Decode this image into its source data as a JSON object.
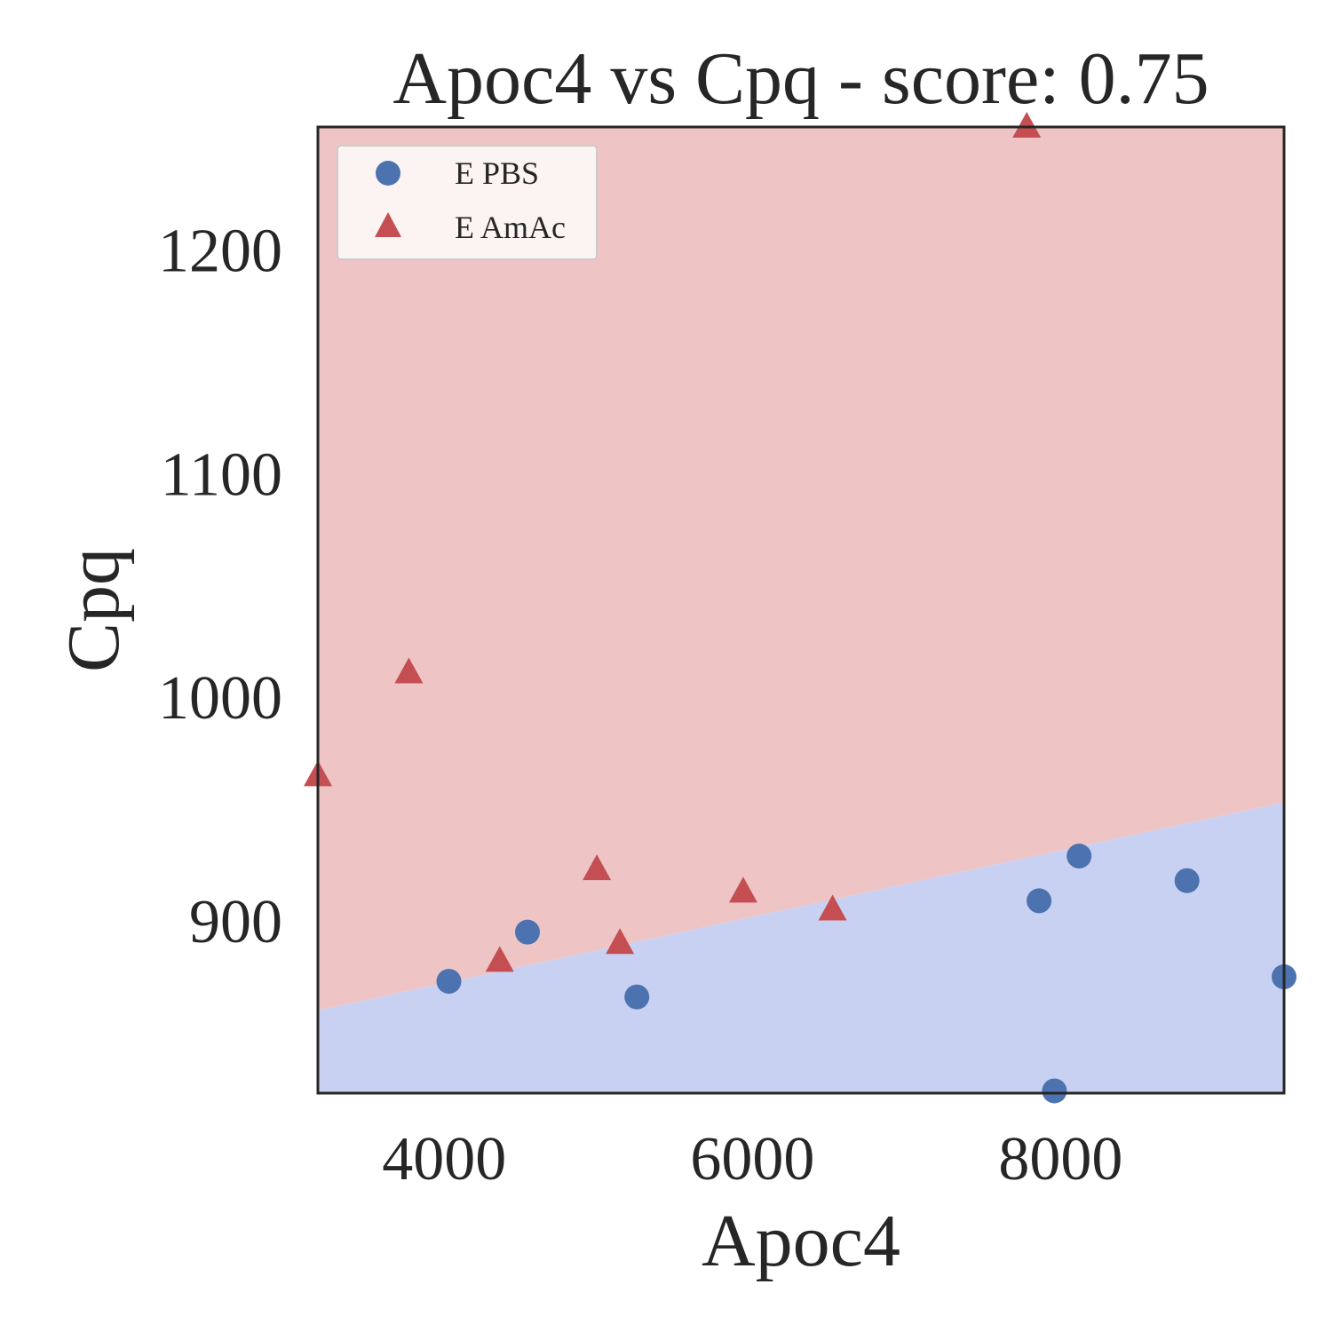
{
  "chart_data": {
    "type": "scatter",
    "title": "Apoc4 vs Cpq - score: 0.75",
    "xlabel": "Apoc4",
    "ylabel": "Cpq",
    "xlim": [
      3180,
      9450
    ],
    "ylim": [
      823,
      1255
    ],
    "xticks": [
      "4000",
      "6000",
      "8000"
    ],
    "xtick_values": [
      4000,
      6000,
      8000
    ],
    "yticks": [
      "900",
      "1000",
      "1100",
      "1200"
    ],
    "ytick_values": [
      900,
      1000,
      1100,
      1200
    ],
    "grid": false,
    "legend_position": "top-left",
    "decision_boundary": {
      "x": [
        3180,
        9450
      ],
      "y": [
        860,
        953
      ],
      "color_above": "#eec5c4",
      "color_below": "#c9d1f3"
    },
    "series": [
      {
        "name": "E PBS",
        "marker": "circle",
        "color": "#4c72b0",
        "points": [
          [
            4030,
            873
          ],
          [
            4540,
            895
          ],
          [
            5250,
            866
          ],
          [
            7860,
            909
          ],
          [
            7960,
            824
          ],
          [
            8120,
            929
          ],
          [
            8820,
            918
          ],
          [
            9450,
            875
          ]
        ]
      },
      {
        "name": "E AmAc",
        "marker": "triangle",
        "color": "#c44e52",
        "points": [
          [
            3180,
            965
          ],
          [
            3770,
            1011
          ],
          [
            4360,
            882
          ],
          [
            4990,
            923
          ],
          [
            5140,
            890
          ],
          [
            5940,
            913
          ],
          [
            6520,
            905
          ],
          [
            7780,
            1255
          ]
        ]
      }
    ]
  }
}
